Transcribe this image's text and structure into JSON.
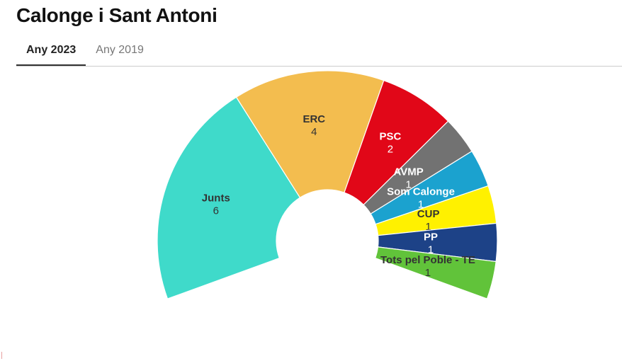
{
  "title": "Calonge i Sant Antoni",
  "tabs": [
    {
      "label": "Any 2023",
      "active": true
    },
    {
      "label": "Any 2019",
      "active": false
    }
  ],
  "chart_data": {
    "type": "pie",
    "subtype": "parliament-semicircle",
    "categories": [
      "Junts",
      "ERC",
      "PSC",
      "AVMP",
      "Som Calonge",
      "CUP",
      "PP",
      "Tots pel Poble - TE"
    ],
    "values": [
      6,
      4,
      2,
      1,
      1,
      1,
      1,
      1
    ],
    "colors": [
      "#3fdaca",
      "#f3bd4f",
      "#e10718",
      "#727272",
      "#1ba2cf",
      "#fff100",
      "#1d4287",
      "#61c33a"
    ],
    "label_colors": [
      "#333333",
      "#333333",
      "#ffffff",
      "#ffffff",
      "#ffffff",
      "#333333",
      "#ffffff",
      "#333333"
    ]
  }
}
